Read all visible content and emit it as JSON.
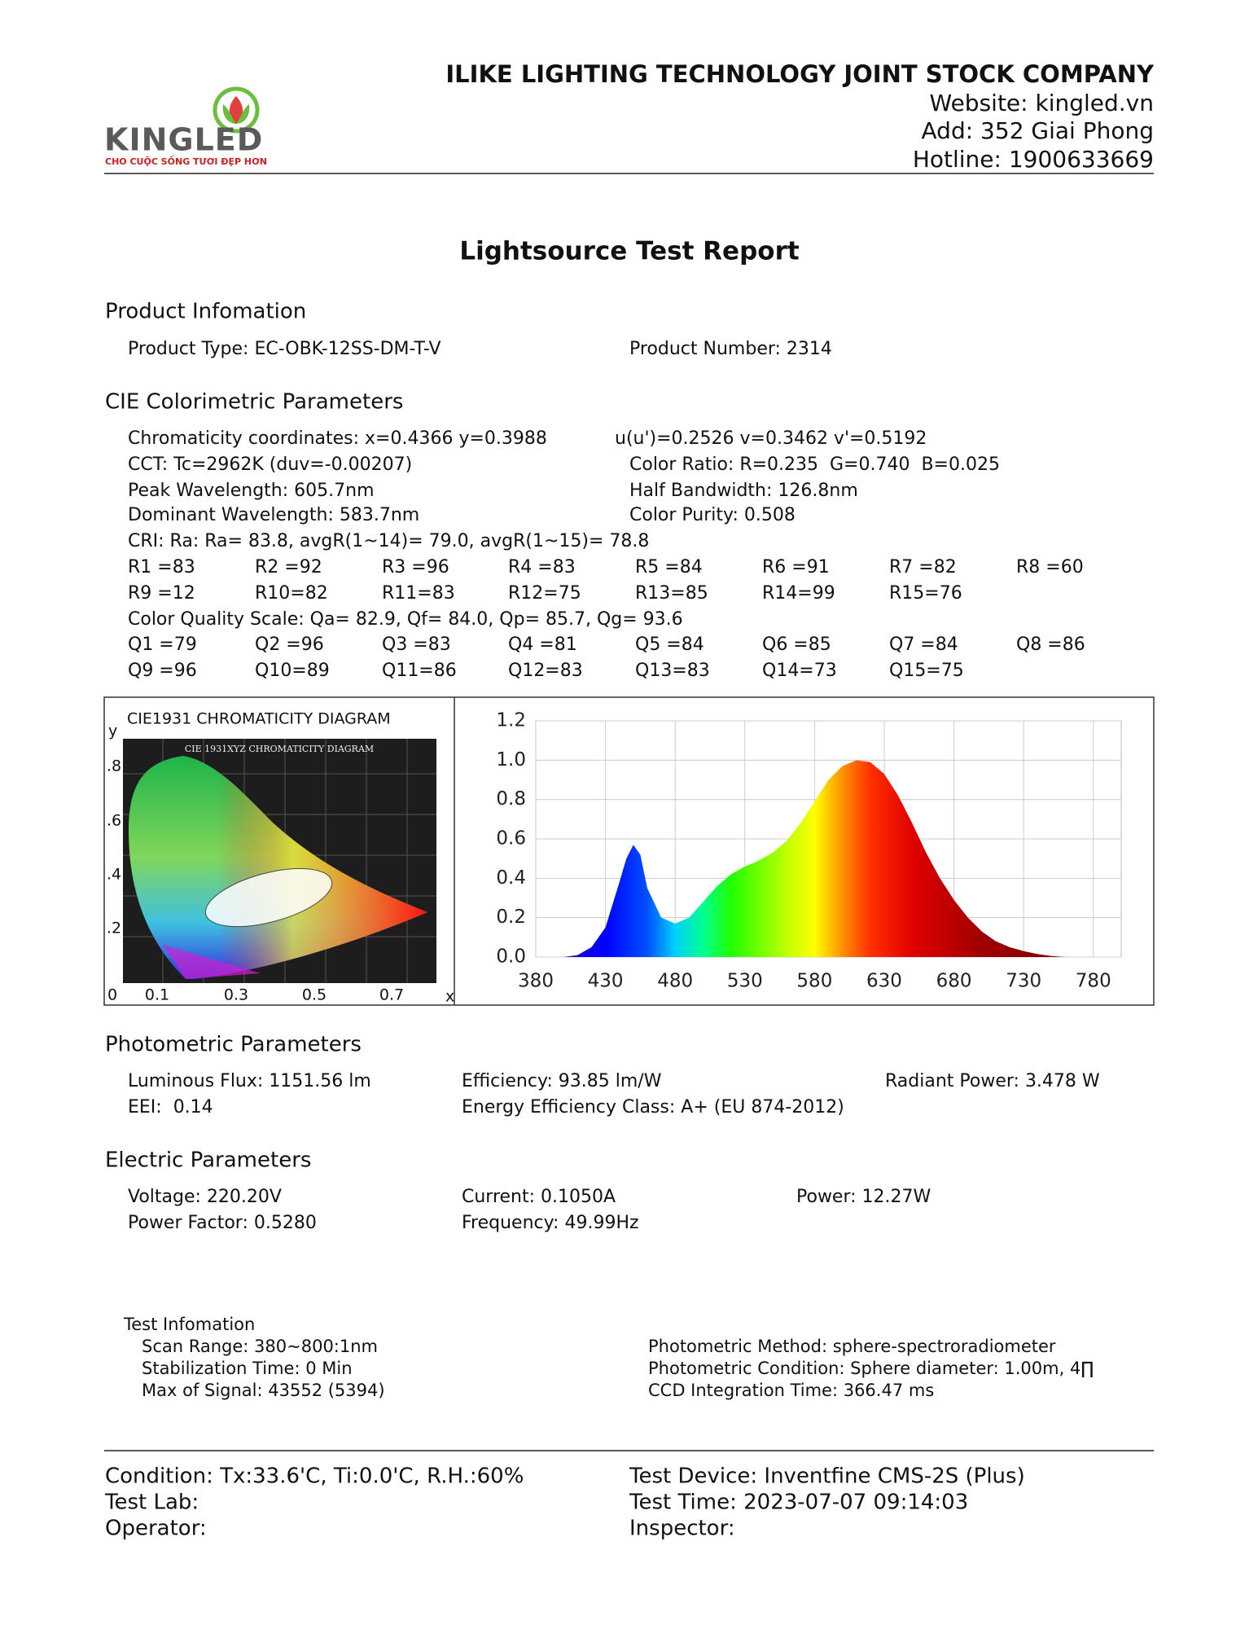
{
  "header": {
    "logo_text": "KINGLED",
    "slogan": "CHO CUỘC SỐNG TƯƠI ĐẸP HƠN",
    "company": "ILIKE LIGHTING TECHNOLOGY JOINT STOCK COMPANY",
    "website": "Website: kingled.vn",
    "address": "Add: 352 Giai Phong",
    "hotline": "Hotline: 1900633669"
  },
  "title": "Lightsource Test Report",
  "product": {
    "heading": "Product Infomation",
    "rows": [
      [
        "Product Type: EC-OBK-12SS-DM-T-V",
        "Product Number: 2314"
      ]
    ]
  },
  "cie_parameters": {
    "heading": "CIE Colorimetric Parameters",
    "rows": [
      [
        "Chromaticity coordinates: x=0.4366 y=0.3988",
        "u(u')=0.2526 v=0.3462 v'=0.5192"
      ],
      [
        "CCT: Tc=2962K (duv=-0.00207)",
        "Color Ratio: R=0.235  G=0.740  B=0.025"
      ],
      [
        "Peak Wavelength: 605.7nm",
        "Half Bandwidth: 126.8nm"
      ],
      [
        "Dominant Wavelength: 583.7nm",
        "Color Purity: 0.508"
      ]
    ],
    "cri": "CRI: Ra: Ra= 83.8, avgR(1~14)= 79.0, avgR(1~15)= 78.8",
    "r_values": [
      [
        "R1 =83",
        "R2 =92",
        "R3 =96",
        "R4 =83",
        "R5 =84",
        "R6 =91",
        "R7 =82",
        "R8 =60"
      ],
      [
        "R9 =12",
        "R10=82",
        "R11=83",
        "R12=75",
        "R13=85",
        "R14=99",
        "R15=76"
      ]
    ],
    "cqs": "Color Quality Scale: Qa= 82.9, Qf= 84.0, Qp= 85.7, Qg= 93.6",
    "q_values": [
      [
        "Q1 =79",
        "Q2 =96",
        "Q3 =83",
        "Q4 =81",
        "Q5 =84",
        "Q6 =85",
        "Q7 =84",
        "Q8 =86"
      ],
      [
        "Q9 =96",
        "Q10=89",
        "Q11=86",
        "Q12=83",
        "Q13=83",
        "Q14=73",
        "Q15=75"
      ]
    ]
  },
  "cie_diagram": {
    "title": "CIE1931 CHROMATICITY DIAGRAM",
    "image_title": "CIE 1931XYZ CHROMATICITY DIAGRAM",
    "y_label": "y",
    "y_ticks": [
      ".8",
      ".6",
      ".4",
      ".2"
    ],
    "origin": "0",
    "x_ticks": [
      "0.1",
      "0.3",
      "0.5",
      "0.7"
    ],
    "x_label": "x"
  },
  "chart_data": {
    "type": "area",
    "x": [
      380,
      390,
      400,
      410,
      420,
      430,
      440,
      445,
      450,
      455,
      460,
      470,
      480,
      490,
      500,
      510,
      520,
      530,
      540,
      550,
      560,
      570,
      580,
      590,
      600,
      610,
      620,
      630,
      640,
      650,
      660,
      670,
      680,
      690,
      700,
      710,
      720,
      730,
      740,
      750,
      760,
      770,
      780
    ],
    "values": [
      0,
      0,
      0,
      0.01,
      0.05,
      0.15,
      0.38,
      0.5,
      0.57,
      0.52,
      0.35,
      0.2,
      0.17,
      0.2,
      0.28,
      0.36,
      0.42,
      0.46,
      0.49,
      0.53,
      0.59,
      0.68,
      0.79,
      0.9,
      0.97,
      1.0,
      0.99,
      0.93,
      0.82,
      0.68,
      0.53,
      0.4,
      0.29,
      0.2,
      0.13,
      0.08,
      0.05,
      0.03,
      0.015,
      0.005,
      0,
      0,
      0
    ],
    "xlim": [
      380,
      800
    ],
    "ylim": [
      0,
      1.2
    ],
    "xticks": [
      380,
      430,
      480,
      530,
      580,
      630,
      680,
      730,
      780
    ],
    "yticks": [
      {
        "value": 0,
        "label": "0.0"
      },
      0.2,
      0.4,
      0.6,
      0.8,
      {
        "value": 1,
        "label": "1.0"
      },
      1.2
    ],
    "grid": true
  },
  "photometric": {
    "heading": "Photometric Parameters",
    "rows": [
      [
        "Luminous Flux: 1151.56 lm",
        "Efficiency: 93.85 lm/W",
        "Radiant Power: 3.478 W"
      ],
      [
        "EEI:  0.14",
        "Energy Efficiency Class: A+ (EU 874-2012)"
      ]
    ]
  },
  "electric": {
    "heading": "Electric Parameters",
    "rows": [
      [
        "Voltage: 220.20V",
        "Current: 0.1050A",
        "Power: 12.27W"
      ],
      [
        "Power Factor: 0.5280",
        "Frequency: 49.99Hz"
      ]
    ]
  },
  "test_info": {
    "heading": "Test Infomation",
    "left": [
      "Scan Range: 380~800:1nm",
      "Stabilization Time: 0 Min",
      "Max of Signal: 43552 (5394)"
    ],
    "right": [
      "Photometric Method: sphere-spectroradiometer",
      "Photometric Condition: Sphere diameter: 1.00m, 4∏",
      "CCD Integration Time: 366.47 ms"
    ]
  },
  "footer": {
    "left": [
      "Condition: Tx:33.6'C, Ti:0.0'C, R.H.:60%",
      "Test Lab:",
      "Operator:"
    ],
    "right": [
      "Test Device: Inventfine CMS-2S (Plus)",
      "Test Time: 2023-07-07 09:14:03",
      "Inspector:"
    ]
  }
}
